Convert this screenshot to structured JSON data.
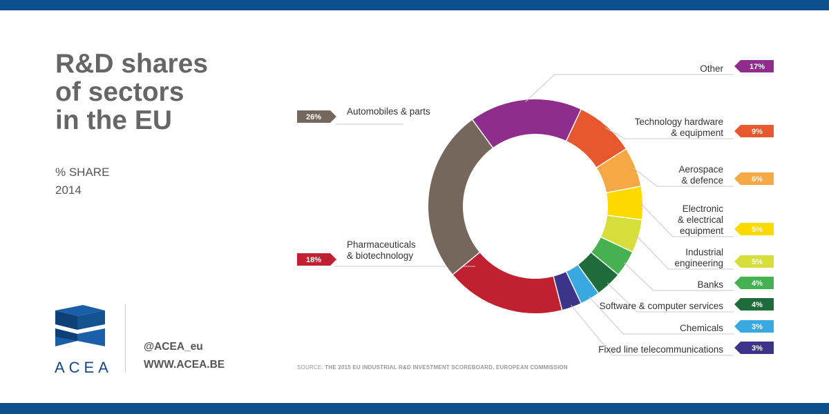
{
  "header": {
    "title_lines": [
      "R&D shares",
      "of sectors",
      "in the EU"
    ],
    "subtitle_lines": [
      "% SHARE",
      "2014"
    ]
  },
  "branding": {
    "logo_text": "ACEA",
    "twitter": "@ACEA_eu",
    "website": "WWW.ACEA.BE"
  },
  "source": {
    "label": "SOURCE:",
    "text": "THE 2015 EU INDUSTRIAL R&D INVESTMENT SCOREBOARD, EUROPEAN COMMISSION"
  },
  "colors": {
    "brand_bar": "#0b4f8f",
    "title": "#666666"
  },
  "chart_data": {
    "type": "pie",
    "donut": true,
    "title": "R&D shares of sectors in the EU",
    "unit": "%",
    "slices": [
      {
        "label": "Other",
        "value": 17,
        "value_label": "17%",
        "color": "#8e2d8c"
      },
      {
        "label": "Technology hardware & equipment",
        "value": 9,
        "value_label": "9%",
        "color": "#e8582e"
      },
      {
        "label": "Aerospace & defence",
        "value": 6,
        "value_label": "6%",
        "color": "#f5a844"
      },
      {
        "label": "Electronic & electrical equipment",
        "value": 5,
        "value_label": "5%",
        "color": "#fdd900"
      },
      {
        "label": "Industrial engineering",
        "value": 5,
        "value_label": "5%",
        "color": "#d5de3a"
      },
      {
        "label": "Banks",
        "value": 4,
        "value_label": "4%",
        "color": "#45b150"
      },
      {
        "label": "Software & computer services",
        "value": 4,
        "value_label": "4%",
        "color": "#1f6b3a"
      },
      {
        "label": "Chemicals",
        "value": 3,
        "value_label": "3%",
        "color": "#39a8e0"
      },
      {
        "label": "Fixed line telecommunications",
        "value": 3,
        "value_label": "3%",
        "color": "#3b3489"
      },
      {
        "label": "Pharmaceuticals & biotechnology",
        "value": 18,
        "value_label": "18%",
        "color": "#bf2131"
      },
      {
        "label": "Automobiles & parts",
        "value": 26,
        "value_label": "26%",
        "color": "#75675c"
      }
    ]
  }
}
